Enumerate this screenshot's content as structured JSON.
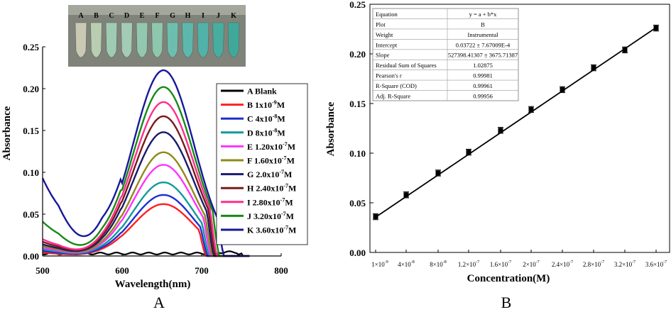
{
  "panels": {
    "left_label": "A",
    "right_label": "B",
    "vial_labels": [
      "A",
      "B",
      "C",
      "D",
      "E",
      "F",
      "G",
      "H",
      "I",
      "J",
      "K"
    ],
    "vial_colors": [
      "#c9c9b4",
      "#b9cdb1",
      "#9fcbb3",
      "#a3cbb5",
      "#92c8b0",
      "#8ec7ae",
      "#6cbfae",
      "#5cb8ac",
      "#50b2a8",
      "#47ad9f",
      "#3fa89b"
    ]
  },
  "chart_data": [
    {
      "type": "line",
      "title": "",
      "xlabel": "Wavelength(nm)",
      "ylabel": "Absorbance",
      "xlim": [
        500,
        800
      ],
      "ylim": [
        0,
        0.25
      ],
      "xticks": [
        "500",
        "600",
        "700",
        "800"
      ],
      "yticks": [
        "0.00",
        "0.05",
        "0.10",
        "0.15",
        "0.20",
        "0.25"
      ],
      "legend": "right",
      "series": [
        {
          "name": "A Blank",
          "color": "#000000",
          "base": 0.003,
          "peak": 0.004,
          "left_value": 0.004,
          "zero_at": 730
        },
        {
          "name": "B 1x10-9M",
          "color": "#ff2020",
          "base": 0.0,
          "peak": 0.062,
          "left_value": 0.004,
          "zero_at": 705
        },
        {
          "name": "C 4x10-8M",
          "color": "#1f2fd1",
          "base": 0.0,
          "peak": 0.073,
          "left_value": 0.006,
          "zero_at": 707
        },
        {
          "name": "D 8x10-8M",
          "color": "#139a9a",
          "base": 0.0,
          "peak": 0.088,
          "left_value": 0.008,
          "zero_at": 709
        },
        {
          "name": "E 1.20x10-7M",
          "color": "#ff33ff",
          "base": 0.0,
          "peak": 0.109,
          "left_value": 0.01,
          "zero_at": 711
        },
        {
          "name": "F 1.60x10-7M",
          "color": "#8f8a17",
          "base": 0.0,
          "peak": 0.124,
          "left_value": 0.012,
          "zero_at": 713
        },
        {
          "name": "G 2.0x10-7M",
          "color": "#1a1a70",
          "base": 0.0,
          "peak": 0.148,
          "left_value": 0.014,
          "zero_at": 715
        },
        {
          "name": "H 2.40x10-7M",
          "color": "#7a1a1a",
          "base": 0.0,
          "peak": 0.167,
          "left_value": 0.017,
          "zero_at": 717
        },
        {
          "name": "I 2.80x10-7M",
          "color": "#ff2f8f",
          "base": 0.0,
          "peak": 0.184,
          "left_value": 0.02,
          "zero_at": 719
        },
        {
          "name": "J 3.20x10-7M",
          "color": "#168a16",
          "base": 0.0,
          "peak": 0.202,
          "left_value": 0.041,
          "zero_at": 722
        },
        {
          "name": "K 3.60x10-7M",
          "color": "#18189a",
          "base": 0.0,
          "peak": 0.222,
          "left_value": 0.093,
          "zero_at": 728
        }
      ],
      "legend_labels": [
        {
          "lead": "A Blank",
          "exp": "",
          "tail": ""
        },
        {
          "lead": "B 1x10",
          "exp": "-9",
          "tail": "M"
        },
        {
          "lead": "C 4x10",
          "exp": "-8",
          "tail": "M"
        },
        {
          "lead": "D 8x10",
          "exp": "-8",
          "tail": "M"
        },
        {
          "lead": "E 1.20x10",
          "exp": "-7",
          "tail": "M"
        },
        {
          "lead": "F 1.60x10",
          "exp": "-7",
          "tail": "M"
        },
        {
          "lead": "G 2.0x10",
          "exp": "-7",
          "tail": "M"
        },
        {
          "lead": "H 2.40x10",
          "exp": "-7",
          "tail": "M"
        },
        {
          "lead": "I 2.80x10",
          "exp": "-7",
          "tail": "M"
        },
        {
          "lead": "J 3.20x10",
          "exp": "-7",
          "tail": "M"
        },
        {
          "lead": "K 3.60x10",
          "exp": "-7",
          "tail": "M"
        }
      ]
    },
    {
      "type": "scatter",
      "title": "",
      "xlabel": "Concentration(M)",
      "ylabel": "Absorbance",
      "ylim": [
        0,
        0.25
      ],
      "yticks": [
        "0.00",
        "0.05",
        "0.10",
        "0.15",
        "0.20",
        "0.25"
      ],
      "categories": [
        {
          "m": "1",
          "e": "-9"
        },
        {
          "m": "4",
          "e": "-8"
        },
        {
          "m": "8",
          "e": "-8"
        },
        {
          "m": "1.2",
          "e": "-7"
        },
        {
          "m": "1.6",
          "e": "-7"
        },
        {
          "m": "2",
          "e": "-7"
        },
        {
          "m": "2.4",
          "e": "-7"
        },
        {
          "m": "2.8",
          "e": "-7"
        },
        {
          "m": "3.2",
          "e": "-7"
        },
        {
          "m": "3.6",
          "e": "-7"
        }
      ],
      "x": [
        1e-09,
        4e-08,
        8e-08,
        1.2e-07,
        1.6e-07,
        2e-07,
        2.4e-07,
        2.8e-07,
        3.2e-07,
        3.6e-07
      ],
      "values": [
        0.036,
        0.058,
        0.08,
        0.101,
        0.123,
        0.144,
        0.164,
        0.186,
        0.204,
        0.226
      ],
      "error": 0.003,
      "fit": {
        "intercept": 0.03722,
        "slope": 527398.41307
      },
      "table": [
        [
          "Equation",
          "y = a + b*x"
        ],
        [
          "Plot",
          "B"
        ],
        [
          "Weight",
          "Instrumental"
        ],
        [
          "Intercept",
          "0.03722 ± 7.67009E-4"
        ],
        [
          "Slope",
          "527398.41307 ± 3675.71387"
        ],
        [
          "Residual Sum of Squares",
          "1.02875"
        ],
        [
          "Pearson's r",
          "0.99981"
        ],
        [
          "R-Square (COD)",
          "0.99961"
        ],
        [
          "Adj. R-Square",
          "0.99956"
        ]
      ]
    }
  ]
}
